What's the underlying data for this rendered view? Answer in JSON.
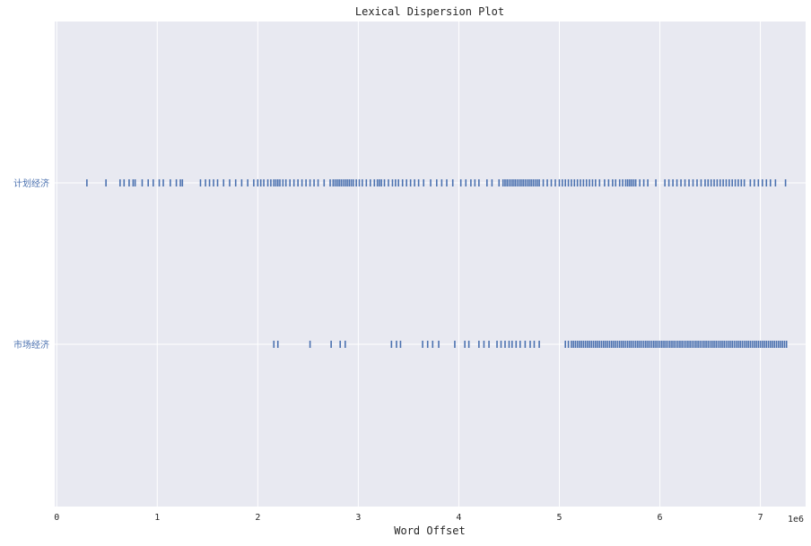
{
  "chart_data": {
    "type": "scatter",
    "title": "Lexical Dispersion Plot",
    "xlabel": "Word Offset",
    "ylabel": "",
    "x_scale_label": "1e6",
    "xlim": [
      -0.02,
      7.45
    ],
    "x_ticks": [
      0,
      1,
      2,
      3,
      4,
      5,
      6,
      7
    ],
    "x_tick_labels": [
      "0",
      "1",
      "2",
      "3",
      "4",
      "5",
      "6",
      "7"
    ],
    "grid": true,
    "background_color": "#e8e9f1",
    "mark_color": "#4c72b0",
    "label_color": "#4c72b0",
    "series": [
      {
        "name": "计划经济",
        "x": [
          0.3,
          0.49,
          0.63,
          0.67,
          0.72,
          0.76,
          0.78,
          0.85,
          0.91,
          0.96,
          1.02,
          1.06,
          1.13,
          1.19,
          1.23,
          1.25,
          1.43,
          1.48,
          1.52,
          1.56,
          1.6,
          1.66,
          1.72,
          1.78,
          1.84,
          1.9,
          1.96,
          2.0,
          2.03,
          2.06,
          2.1,
          2.13,
          2.16,
          2.18,
          2.2,
          2.22,
          2.25,
          2.28,
          2.32,
          2.36,
          2.4,
          2.44,
          2.48,
          2.52,
          2.56,
          2.6,
          2.66,
          2.72,
          2.75,
          2.77,
          2.79,
          2.81,
          2.83,
          2.85,
          2.87,
          2.89,
          2.91,
          2.93,
          2.95,
          2.98,
          3.01,
          3.04,
          3.08,
          3.12,
          3.16,
          3.19,
          3.21,
          3.23,
          3.26,
          3.3,
          3.34,
          3.37,
          3.4,
          3.44,
          3.48,
          3.52,
          3.56,
          3.6,
          3.65,
          3.72,
          3.78,
          3.83,
          3.88,
          3.94,
          4.02,
          4.07,
          4.12,
          4.16,
          4.2,
          4.28,
          4.33,
          4.4,
          4.44,
          4.46,
          4.48,
          4.5,
          4.52,
          4.54,
          4.56,
          4.58,
          4.6,
          4.62,
          4.64,
          4.66,
          4.68,
          4.7,
          4.72,
          4.74,
          4.76,
          4.78,
          4.8,
          4.84,
          4.88,
          4.92,
          4.96,
          5.0,
          5.03,
          5.06,
          5.09,
          5.12,
          5.15,
          5.18,
          5.21,
          5.24,
          5.27,
          5.3,
          5.33,
          5.36,
          5.4,
          5.45,
          5.49,
          5.53,
          5.56,
          5.6,
          5.63,
          5.66,
          5.68,
          5.7,
          5.72,
          5.74,
          5.76,
          5.8,
          5.84,
          5.88,
          5.96,
          6.05,
          6.09,
          6.13,
          6.17,
          6.21,
          6.25,
          6.29,
          6.33,
          6.37,
          6.41,
          6.45,
          6.48,
          6.51,
          6.54,
          6.57,
          6.6,
          6.63,
          6.66,
          6.69,
          6.72,
          6.75,
          6.78,
          6.81,
          6.84,
          6.9,
          6.94,
          6.98,
          7.02,
          7.06,
          7.1,
          7.15,
          7.25
        ],
        "y": 1
      },
      {
        "name": "市场经济",
        "x": [
          2.16,
          2.2,
          2.52,
          2.73,
          2.82,
          2.87,
          3.33,
          3.38,
          3.42,
          3.64,
          3.69,
          3.74,
          3.8,
          3.96,
          4.06,
          4.1,
          4.2,
          4.25,
          4.3,
          4.38,
          4.42,
          4.46,
          4.5,
          4.53,
          4.57,
          4.61,
          4.66,
          4.71,
          4.75,
          4.8,
          5.06,
          5.09,
          5.12,
          5.14,
          5.16,
          5.18,
          5.2,
          5.22,
          5.24,
          5.26,
          5.28,
          5.3,
          5.32,
          5.34,
          5.36,
          5.38,
          5.4,
          5.42,
          5.44,
          5.46,
          5.48,
          5.5,
          5.52,
          5.54,
          5.56,
          5.58,
          5.6,
          5.62,
          5.64,
          5.66,
          5.68,
          5.7,
          5.72,
          5.74,
          5.76,
          5.78,
          5.8,
          5.82,
          5.84,
          5.86,
          5.88,
          5.9,
          5.92,
          5.94,
          5.96,
          5.98,
          6.0,
          6.02,
          6.04,
          6.06,
          6.08,
          6.1,
          6.12,
          6.14,
          6.16,
          6.18,
          6.2,
          6.22,
          6.24,
          6.26,
          6.28,
          6.3,
          6.32,
          6.34,
          6.36,
          6.38,
          6.4,
          6.42,
          6.44,
          6.46,
          6.48,
          6.5,
          6.52,
          6.54,
          6.56,
          6.58,
          6.6,
          6.62,
          6.64,
          6.66,
          6.68,
          6.7,
          6.72,
          6.74,
          6.76,
          6.78,
          6.8,
          6.82,
          6.84,
          6.86,
          6.88,
          6.9,
          6.92,
          6.94,
          6.96,
          6.98,
          7.0,
          7.02,
          7.04,
          7.06,
          7.08,
          7.1,
          7.12,
          7.14,
          7.16,
          7.18,
          7.2,
          7.22,
          7.24,
          7.26
        ],
        "y": 0
      }
    ]
  }
}
